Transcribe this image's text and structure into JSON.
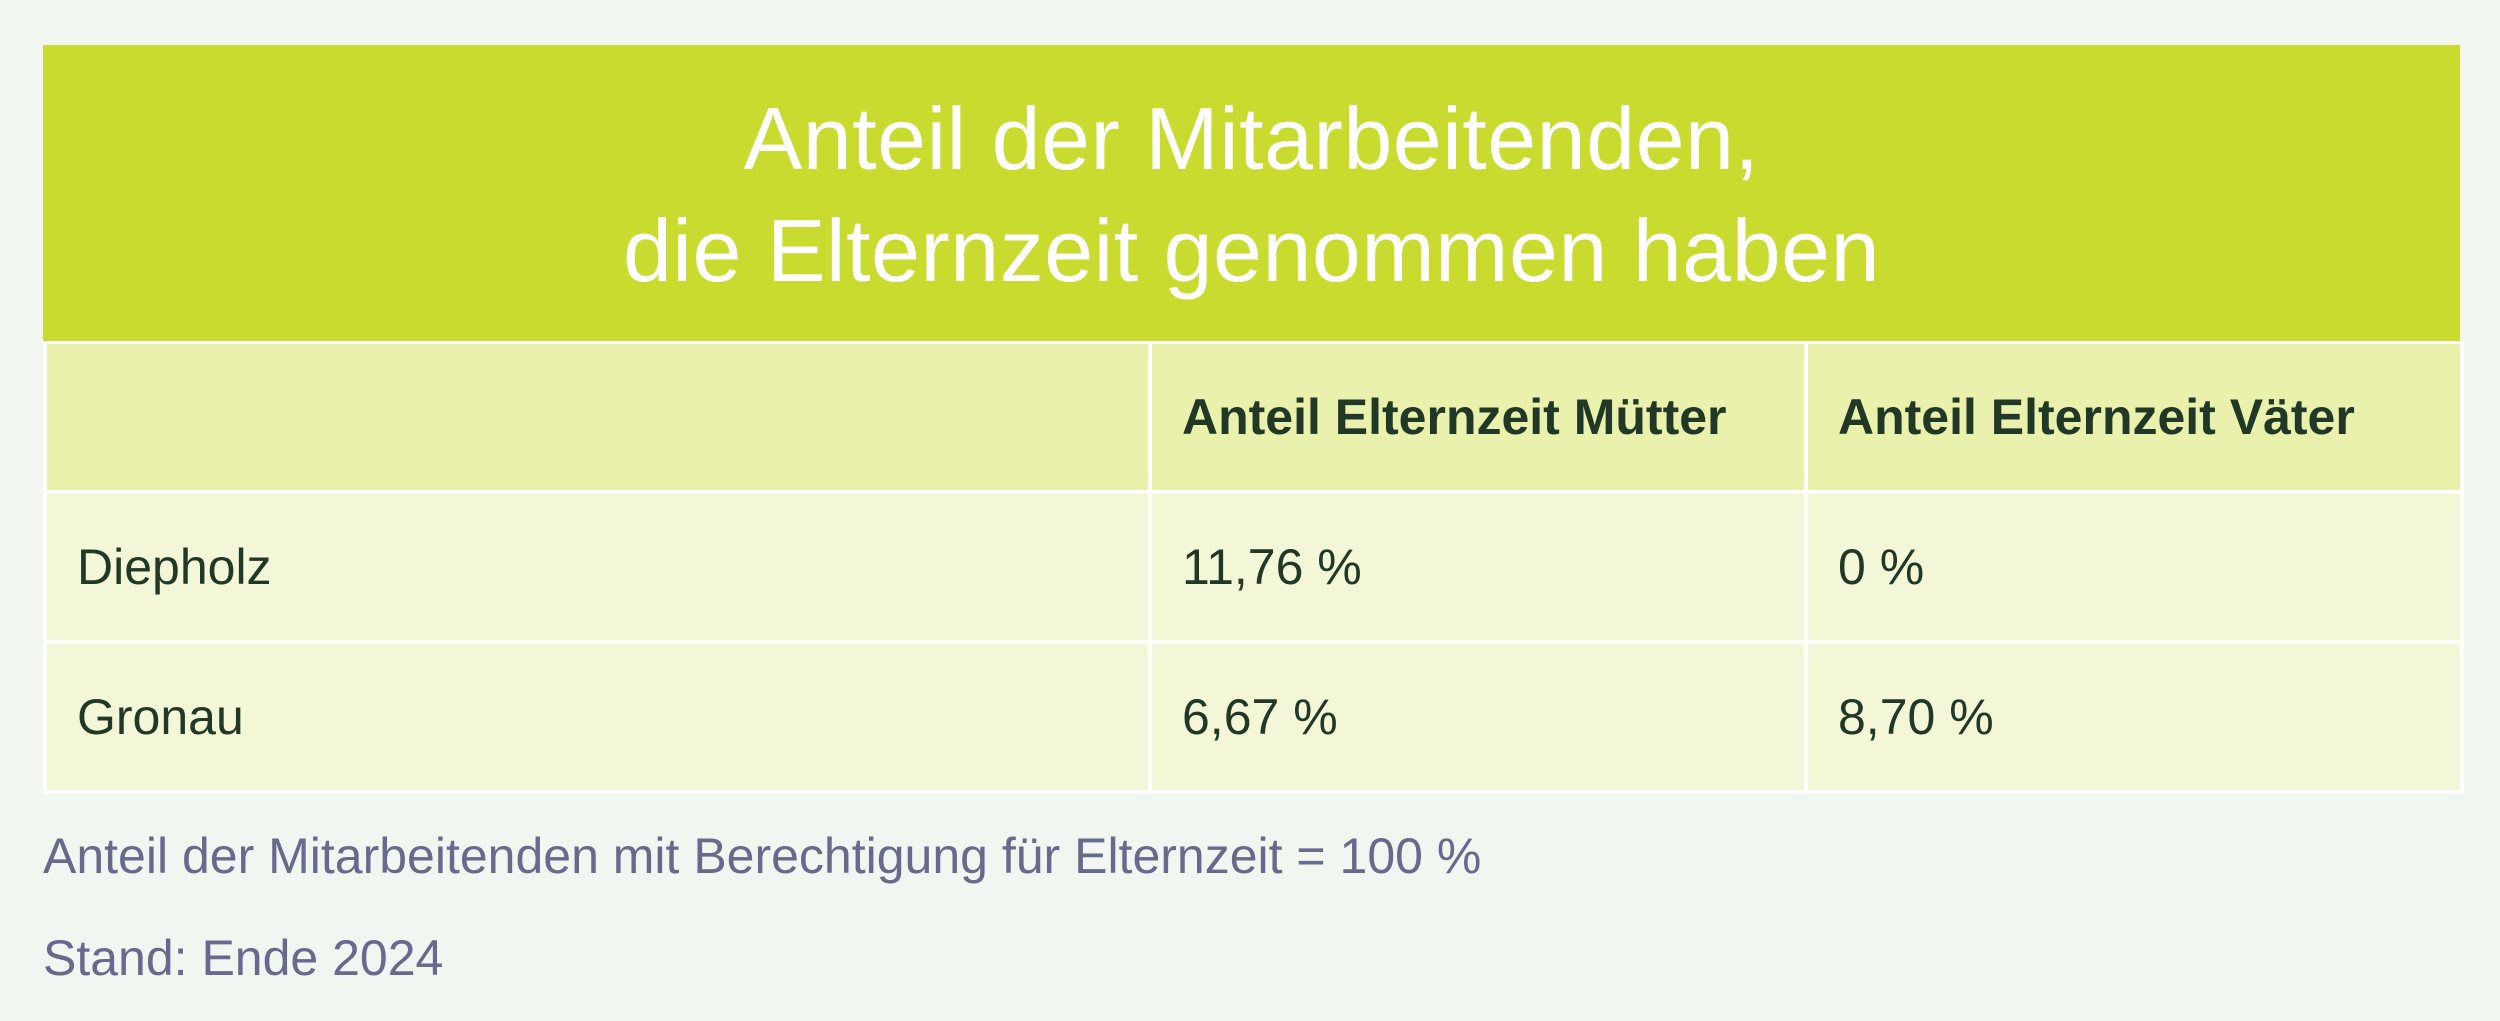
{
  "chart_data": {
    "type": "table",
    "title": [
      "Anteil der Mitarbeitenden,",
      "die Elternzeit genommen haben"
    ],
    "columns": [
      "",
      "Anteil Elternzeit Mütter",
      "Anteil Elternzeit Väter"
    ],
    "rows": [
      [
        "Diepholz",
        "11,76 %",
        "0 %"
      ],
      [
        "Gronau",
        "6,67 %",
        "8,70 %"
      ]
    ],
    "notes": [
      "Anteil der Mitarbeitenden mit Berechtigung für Elternzeit = 100 %",
      "Stand: Ende 2024"
    ]
  },
  "colors": {
    "title_background": "#c9db2e",
    "header_row_background": "#e9f1ad",
    "body_row_background": "#f3f7d7",
    "page_background": "#f1f6f1",
    "cell_text": "#213826",
    "note_text": "#676a8c"
  }
}
